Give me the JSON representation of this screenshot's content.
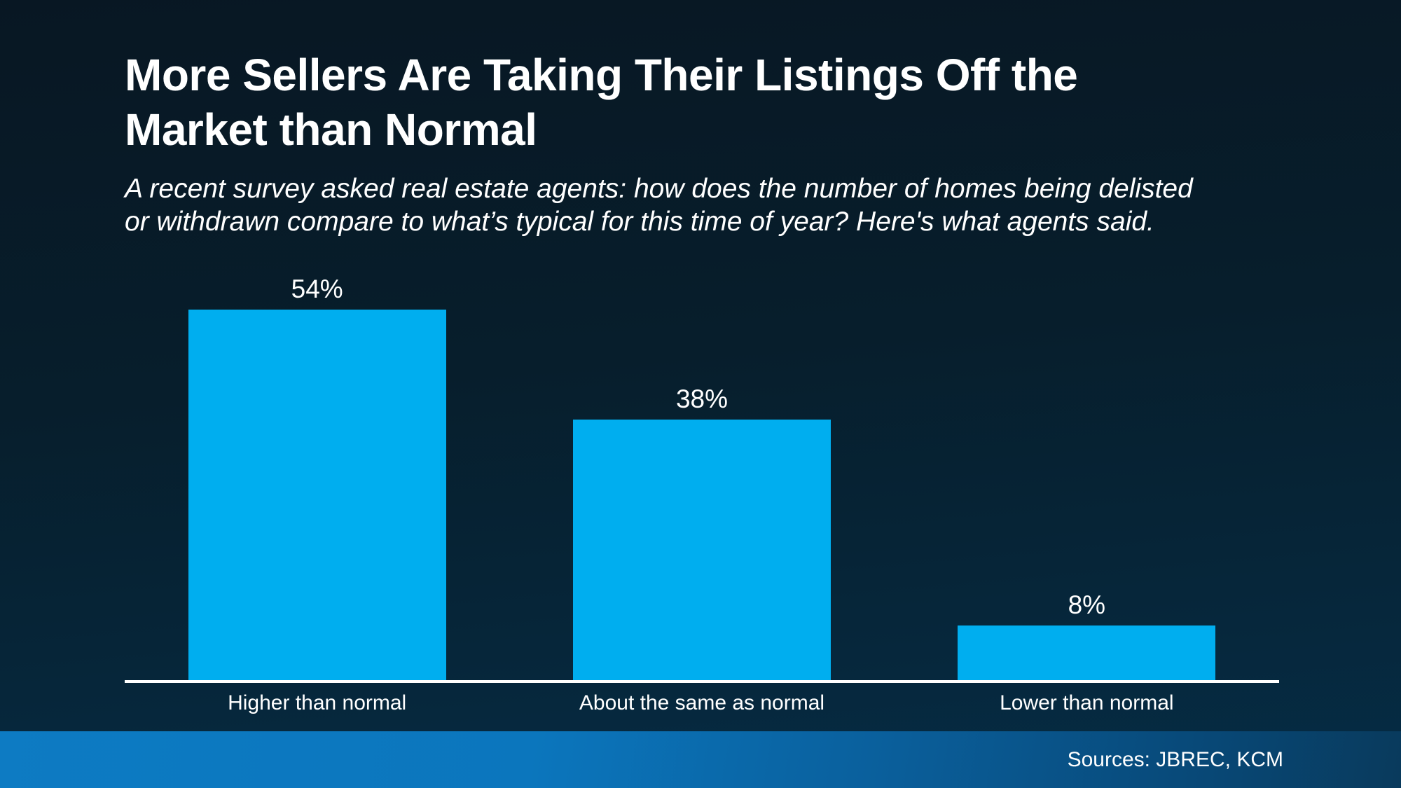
{
  "page": {
    "title": "More Sellers Are Taking Their Listings Off the Market than Normal",
    "subtitle": "A recent survey asked real estate agents: how does the number of homes being delisted or withdrawn compare to what’s typical for this time of year? Here's what agents said.",
    "footer_sources": "Sources: JBREC, KCM"
  },
  "colors": {
    "background_top": "#081723",
    "background_bottom": "#052c45",
    "bar": "#00aeef",
    "axis": "#ffffff",
    "text": "#ffffff",
    "footer_gradient_left": "#0c7ac2",
    "footer_gradient_right": "#093a5c"
  },
  "chart_data": {
    "type": "bar",
    "title": "More Sellers Are Taking Their Listings Off the Market than Normal",
    "subtitle": "A recent survey asked real estate agents: how does the number of homes being delisted or withdrawn compare to what’s typical for this time of year? Here's what agents said.",
    "categories": [
      "Higher than normal",
      "About the same as normal",
      "Lower than normal"
    ],
    "values": [
      54,
      38,
      8
    ],
    "value_labels": [
      "54%",
      "38%",
      "8%"
    ],
    "unit": "percent",
    "ylim": [
      0,
      60
    ],
    "grid": false,
    "legend": null,
    "bar_color": "#00aeef",
    "source_note": "Sources: JBREC, KCM"
  }
}
